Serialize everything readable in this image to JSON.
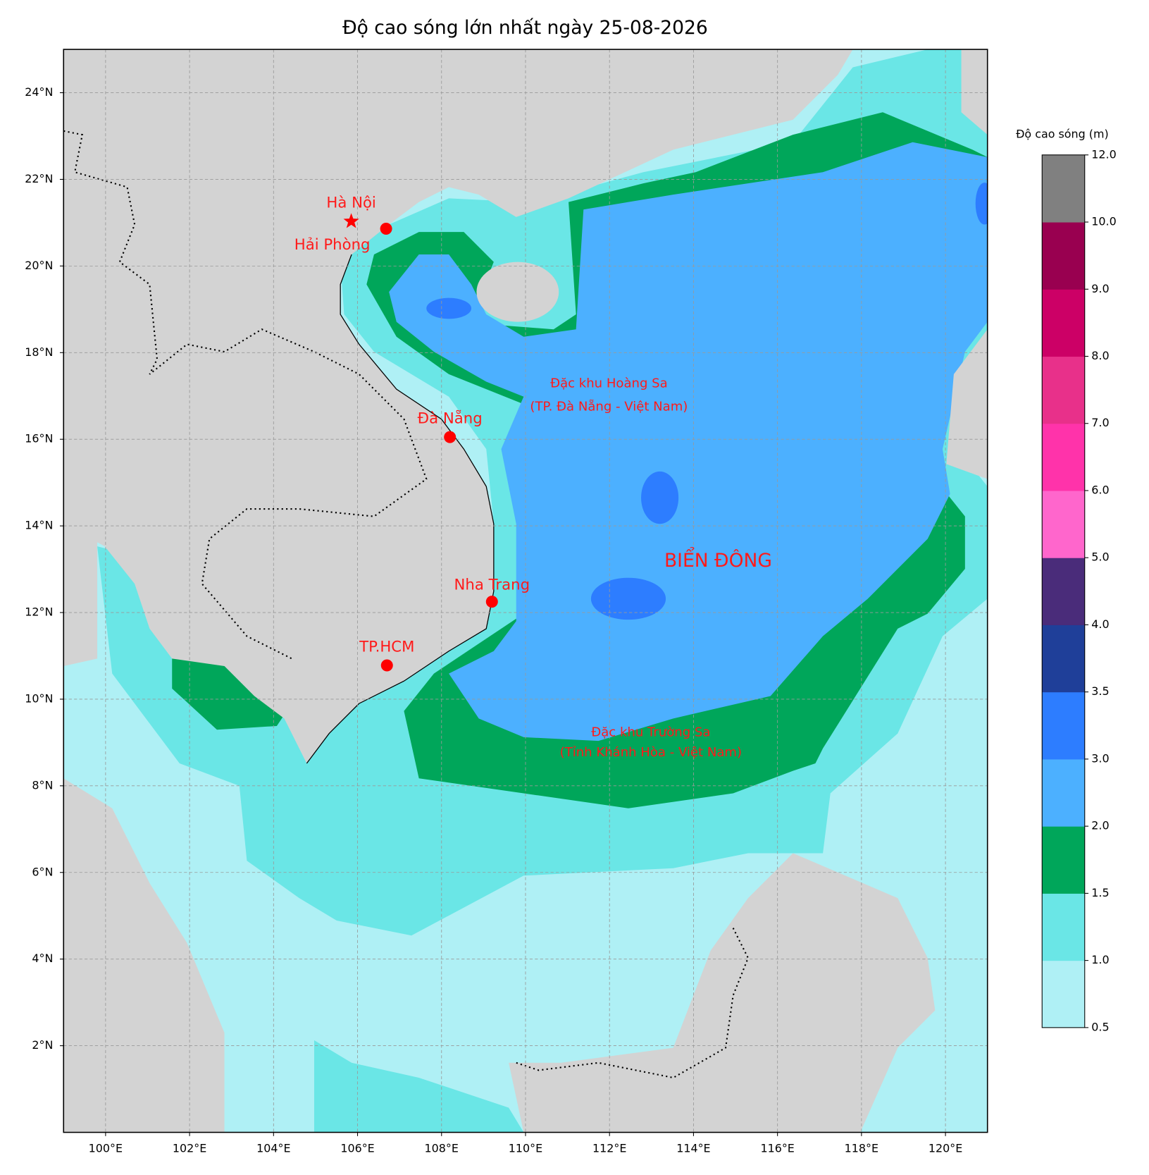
{
  "title": "Độ cao sóng lớn nhất ngày 25-08-2026",
  "map": {
    "xlim": [
      99,
      121
    ],
    "ylim": [
      0,
      25
    ],
    "xticks": [
      {
        "value": 100,
        "label": "100°E"
      },
      {
        "value": 102,
        "label": "102°E"
      },
      {
        "value": 104,
        "label": "104°E"
      },
      {
        "value": 106,
        "label": "106°E"
      },
      {
        "value": 108,
        "label": "108°E"
      },
      {
        "value": 110,
        "label": "110°E"
      },
      {
        "value": 112,
        "label": "112°E"
      },
      {
        "value": 114,
        "label": "114°E"
      },
      {
        "value": 116,
        "label": "116°E"
      },
      {
        "value": 118,
        "label": "118°E"
      },
      {
        "value": 120,
        "label": "120°E"
      }
    ],
    "yticks": [
      {
        "value": 2,
        "label": "2°N"
      },
      {
        "value": 4,
        "label": "4°N"
      },
      {
        "value": 6,
        "label": "6°N"
      },
      {
        "value": 8,
        "label": "8°N"
      },
      {
        "value": 10,
        "label": "10°N"
      },
      {
        "value": 12,
        "label": "12°N"
      },
      {
        "value": 14,
        "label": "14°N"
      },
      {
        "value": 16,
        "label": "16°N"
      },
      {
        "value": 18,
        "label": "18°N"
      },
      {
        "value": 20,
        "label": "20°N"
      },
      {
        "value": 22,
        "label": "22°N"
      },
      {
        "value": 24,
        "label": "24°N"
      }
    ],
    "grid": true,
    "cities": [
      {
        "name": "Hà Nội",
        "lon": 105.85,
        "lat": 21.03,
        "marker": "star"
      },
      {
        "name": "Hải Phòng",
        "lon": 106.68,
        "lat": 20.86,
        "marker": "dot"
      },
      {
        "name": "Đà Nẵng",
        "lon": 108.2,
        "lat": 16.05,
        "marker": "dot"
      },
      {
        "name": "Nha Trang",
        "lon": 109.2,
        "lat": 12.25,
        "marker": "dot"
      },
      {
        "name": "TP.HCM",
        "lon": 106.7,
        "lat": 10.78,
        "marker": "dot"
      }
    ],
    "annotations": [
      "Đặc khu Hoàng Sa",
      "(TP. Đà Nẵng - Việt Nam)",
      "BIỂN ĐÔNG",
      "Đặc khu Trường Sa",
      "(Tỉnh Khánh Hòa - Việt Nam)"
    ]
  },
  "colorbar": {
    "label": "Độ cao sóng (m)",
    "ticks": [
      {
        "value": 0.5,
        "label": "0.5"
      },
      {
        "value": 1,
        "label": "1.0"
      },
      {
        "value": 1.5,
        "label": "1.5"
      },
      {
        "value": 2,
        "label": "2.0"
      },
      {
        "value": 3,
        "label": "3.0"
      },
      {
        "value": 3.5,
        "label": "3.5"
      },
      {
        "value": 4,
        "label": "4.0"
      },
      {
        "value": 5,
        "label": "5.0"
      },
      {
        "value": 6,
        "label": "6.0"
      },
      {
        "value": 7,
        "label": "7.0"
      },
      {
        "value": 8,
        "label": "8.0"
      },
      {
        "value": 9,
        "label": "9.0"
      },
      {
        "value": 10,
        "label": "10.0"
      },
      {
        "value": 12,
        "label": "12.0"
      }
    ],
    "colors": [
      "#aff0f5",
      "#6ae6e6",
      "#00a65a",
      "#4cb0ff",
      "#2d7dff",
      "#1f3f99",
      "#4a2c7a",
      "#ff66cc",
      "#ff33aa",
      "#e8308a",
      "#cc0066",
      "#990050",
      "#808080"
    ]
  }
}
